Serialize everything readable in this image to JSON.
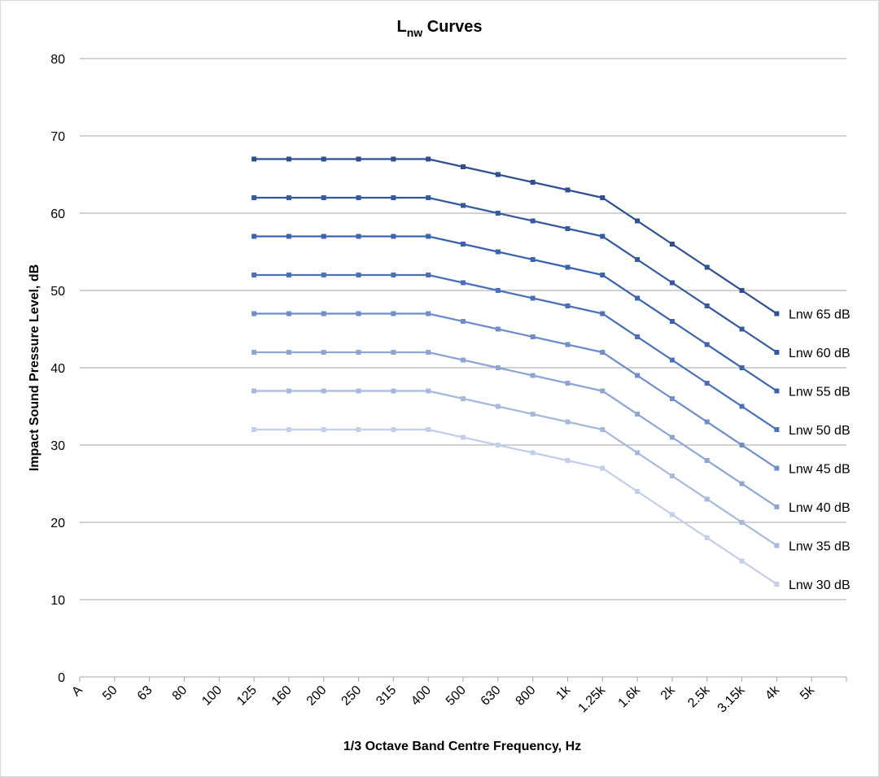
{
  "chart_data": {
    "type": "line",
    "title": "Lnw Curves",
    "title_main": "L",
    "title_subscript": "nw",
    "title_rest": " Curves",
    "xlabel": "1/3 Octave Band Centre Frequency, Hz",
    "ylabel": "Impact Sound Pressure Level, dB",
    "ylim": [
      0,
      80
    ],
    "yticks": [
      0,
      10,
      20,
      30,
      40,
      50,
      60,
      70,
      80
    ],
    "grid": true,
    "legend": "none (series labelled at right end of lines)",
    "categories": [
      "A",
      "50",
      "63",
      "80",
      "100",
      "125",
      "160",
      "200",
      "250",
      "315",
      "400",
      "500",
      "630",
      "800",
      "1k",
      "1.25k",
      "1.6k",
      "2k",
      "2.5k",
      "3.15k",
      "4k",
      "5k"
    ],
    "series": [
      {
        "name": "Lnw 65 dB",
        "color": "#2F4F8F",
        "values": [
          null,
          null,
          null,
          null,
          null,
          67,
          67,
          67,
          67,
          67,
          67,
          66,
          65,
          64,
          63,
          62,
          59,
          56,
          53,
          50,
          47,
          null
        ]
      },
      {
        "name": "Lnw 60 dB",
        "color": "#355AA0",
        "values": [
          null,
          null,
          null,
          null,
          null,
          62,
          62,
          62,
          62,
          62,
          62,
          61,
          60,
          59,
          58,
          57,
          54,
          51,
          48,
          45,
          42,
          null
        ]
      },
      {
        "name": "Lnw 55 dB",
        "color": "#3C63AE",
        "values": [
          null,
          null,
          null,
          null,
          null,
          57,
          57,
          57,
          57,
          57,
          57,
          56,
          55,
          54,
          53,
          52,
          49,
          46,
          43,
          40,
          37,
          null
        ]
      },
      {
        "name": "Lnw 50 dB",
        "color": "#4A70BA",
        "values": [
          null,
          null,
          null,
          null,
          null,
          52,
          52,
          52,
          52,
          52,
          52,
          51,
          50,
          49,
          48,
          47,
          44,
          41,
          38,
          35,
          32,
          null
        ]
      },
      {
        "name": "Lnw 45 dB",
        "color": "#6F8DC8",
        "values": [
          null,
          null,
          null,
          null,
          null,
          47,
          47,
          47,
          47,
          47,
          47,
          46,
          45,
          44,
          43,
          42,
          39,
          36,
          33,
          30,
          27,
          null
        ]
      },
      {
        "name": "Lnw 40 dB",
        "color": "#8EA5D3",
        "values": [
          null,
          null,
          null,
          null,
          null,
          42,
          42,
          42,
          42,
          42,
          42,
          41,
          40,
          39,
          38,
          37,
          34,
          31,
          28,
          25,
          22,
          null
        ]
      },
      {
        "name": "Lnw 35 dB",
        "color": "#A7B8DD",
        "values": [
          null,
          null,
          null,
          null,
          null,
          37,
          37,
          37,
          37,
          37,
          37,
          36,
          35,
          34,
          33,
          32,
          29,
          26,
          23,
          20,
          17,
          null
        ]
      },
      {
        "name": "Lnw 30 dB",
        "color": "#C3CEE8",
        "values": [
          null,
          null,
          null,
          null,
          null,
          32,
          32,
          32,
          32,
          32,
          32,
          31,
          30,
          29,
          28,
          27,
          24,
          21,
          18,
          15,
          12,
          null
        ]
      }
    ]
  }
}
